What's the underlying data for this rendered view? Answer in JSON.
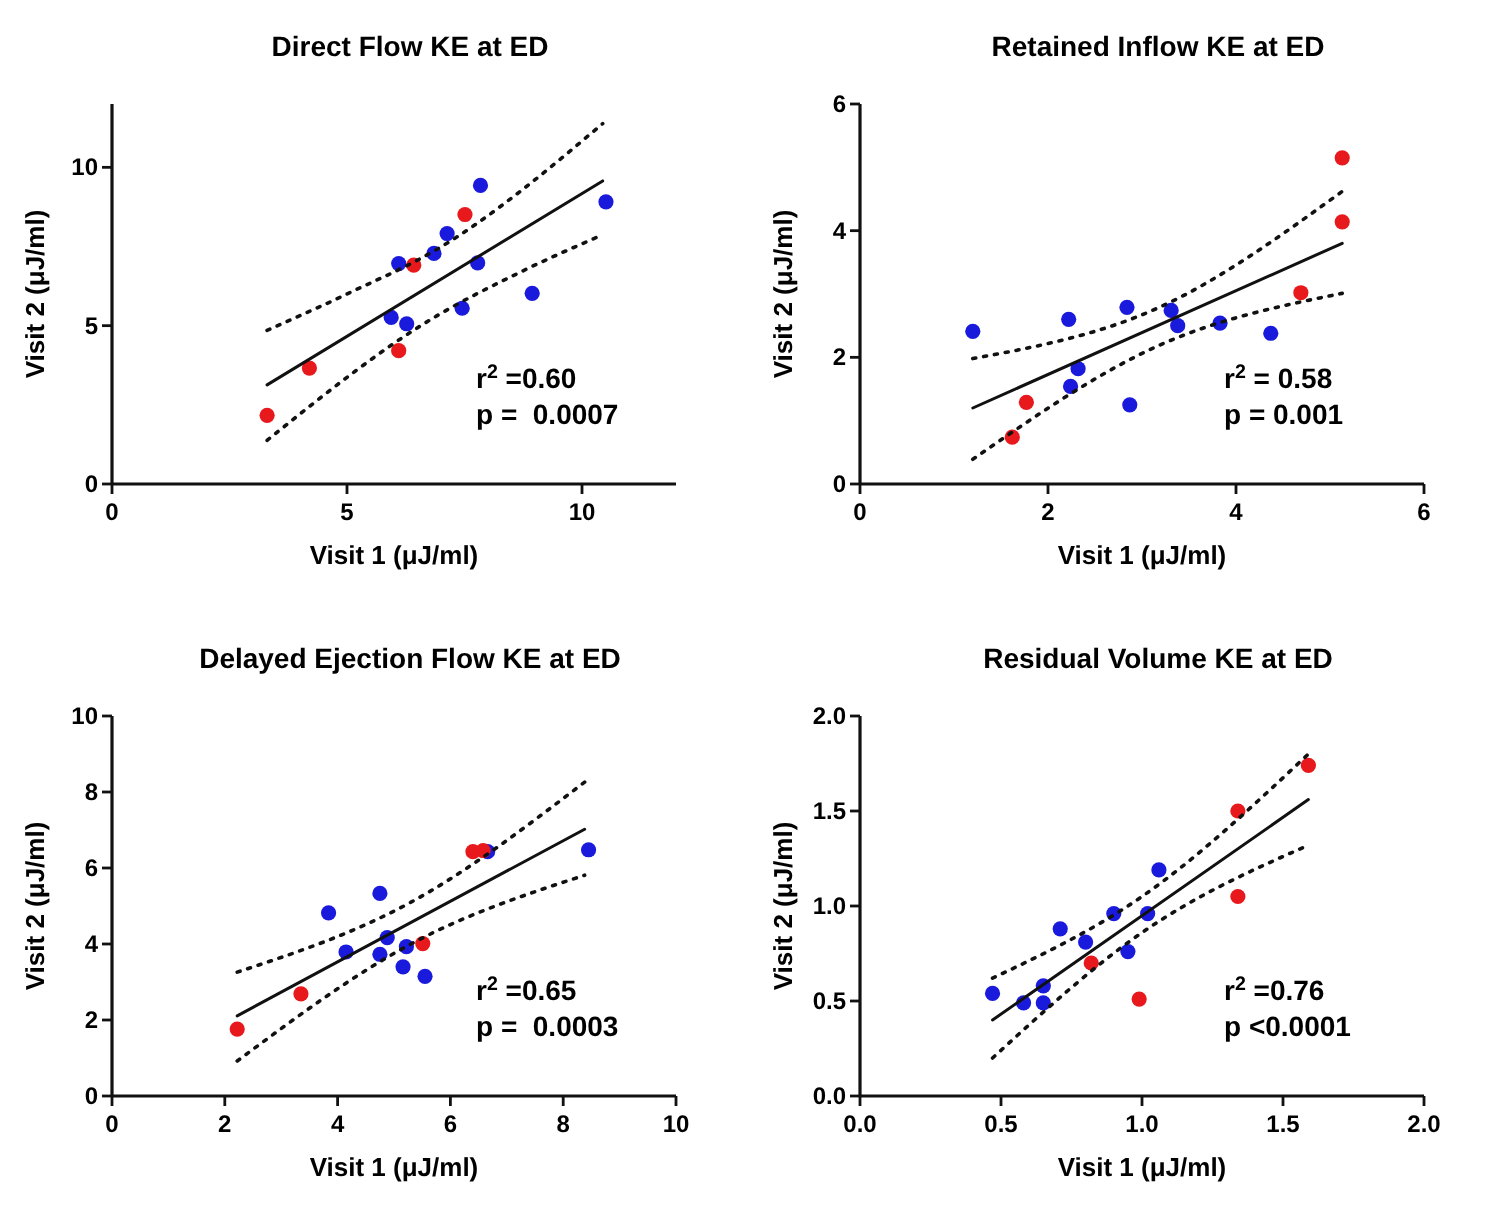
{
  "chart_data": [
    {
      "type": "scatter",
      "title": "Direct Flow KE at ED",
      "xlabel": "Visit 1 (μJ/ml)",
      "ylabel": "Visit 2 (μJ/ml)",
      "xlim": [
        0,
        12
      ],
      "xticks": [
        0,
        5,
        10
      ],
      "ylim": [
        0,
        12
      ],
      "yticks": [
        0,
        5,
        10
      ],
      "annotations": [
        "r$^{2}$ =0.60",
        "p =  0.0007"
      ],
      "series": [
        {
          "marker": "circle",
          "color": "#1a1adc",
          "x": [
            5.94,
            6.1,
            6.27,
            6.85,
            7.13,
            7.84,
            7.78,
            7.45,
            8.94,
            10.51
          ],
          "values": [
            5.26,
            6.96,
            5.06,
            7.28,
            7.91,
            9.43,
            6.98,
            5.55,
            6.02,
            8.91
          ]
        },
        {
          "marker": "circle",
          "color": "#e8191c",
          "x": [
            3.3,
            4.2,
            6.1,
            6.42,
            7.51
          ],
          "values": [
            2.17,
            3.66,
            4.21,
            6.91,
            8.51
          ]
        },
        {
          "type": "line",
          "line_style": "solid",
          "color": "#111111",
          "x": [
            3.3,
            10.44
          ],
          "values": [
            3.13,
            9.57
          ]
        },
        {
          "type": "line",
          "line_style": "dotted",
          "color": "#111111",
          "x": [
            3.3,
            5,
            6.9,
            10.44
          ],
          "values": [
            4.85,
            6.0,
            7.4,
            11.38
          ]
        },
        {
          "type": "line",
          "line_style": "dotted",
          "color": "#111111",
          "x": [
            3.3,
            6.9,
            8.7,
            10.44
          ],
          "values": [
            1.38,
            5.3,
            6.7,
            7.87
          ]
        }
      ]
    },
    {
      "type": "scatter",
      "title": "Retained Inflow KE at ED",
      "xlabel": "Visit 1 (μJ/ml)",
      "ylabel": "Visit 2 (μJ/ml)",
      "xlim": [
        0,
        6
      ],
      "xticks": [
        0,
        2,
        4,
        6
      ],
      "ylim": [
        0,
        6
      ],
      "yticks": [
        0,
        2,
        4,
        6
      ],
      "annotations": [
        "r$^{2}$ = 0.58",
        "p = 0.001"
      ],
      "series": [
        {
          "marker": "circle",
          "color": "#1a1adc",
          "x": [
            1.2,
            2.22,
            2.24,
            2.32,
            2.84,
            2.87,
            3.31,
            3.38,
            3.83,
            4.37
          ],
          "values": [
            2.41,
            2.6,
            1.54,
            1.82,
            2.79,
            1.25,
            2.74,
            2.5,
            2.54,
            2.38
          ]
        },
        {
          "marker": "circle",
          "color": "#e8191c",
          "x": [
            1.62,
            1.77,
            4.69,
            5.13,
            5.13
          ],
          "values": [
            0.74,
            1.29,
            3.02,
            4.14,
            5.15
          ]
        },
        {
          "type": "line",
          "line_style": "solid",
          "color": "#111111",
          "x": [
            1.2,
            5.13
          ],
          "values": [
            1.2,
            3.8
          ]
        },
        {
          "type": "line",
          "line_style": "dotted",
          "color": "#111111",
          "x": [
            1.2,
            3.2,
            5.13
          ],
          "values": [
            1.98,
            2.8,
            4.62
          ]
        },
        {
          "type": "line",
          "line_style": "dotted",
          "color": "#111111",
          "x": [
            1.2,
            3.2,
            5.13
          ],
          "values": [
            0.39,
            2.2,
            3.01
          ]
        }
      ]
    },
    {
      "type": "scatter",
      "title": "Delayed Ejection Flow KE at ED",
      "xlabel": "Visit 1 (μJ/ml)",
      "ylabel": "Visit 2 (μJ/ml)",
      "xlim": [
        0,
        10
      ],
      "xticks": [
        0,
        2,
        4,
        6,
        8,
        10
      ],
      "ylim": [
        0,
        10
      ],
      "yticks": [
        0,
        2,
        4,
        6,
        8,
        10
      ],
      "annotations": [
        "r$^{2}$ =0.65",
        "p =  0.0003"
      ],
      "series": [
        {
          "marker": "circle",
          "color": "#1a1adc",
          "x": [
            3.84,
            4.15,
            4.75,
            4.75,
            4.88,
            5.16,
            5.22,
            5.55,
            6.66,
            8.45
          ],
          "values": [
            4.82,
            3.79,
            5.33,
            3.73,
            4.17,
            3.4,
            3.93,
            3.15,
            6.43,
            6.48
          ]
        },
        {
          "marker": "circle",
          "color": "#e8191c",
          "x": [
            2.22,
            3.35,
            5.51,
            6.4,
            6.58
          ],
          "values": [
            1.76,
            2.69,
            4.01,
            6.43,
            6.46
          ]
        },
        {
          "type": "line",
          "line_style": "solid",
          "color": "#111111",
          "x": [
            2.22,
            8.38
          ],
          "values": [
            2.11,
            7.02
          ]
        },
        {
          "type": "line",
          "line_style": "dotted",
          "color": "#111111",
          "x": [
            2.22,
            5.3,
            8.38
          ],
          "values": [
            3.26,
            5.1,
            8.26
          ]
        },
        {
          "type": "line",
          "line_style": "dotted",
          "color": "#111111",
          "x": [
            2.22,
            5.3,
            8.38
          ],
          "values": [
            0.92,
            4.0,
            5.81
          ]
        }
      ]
    },
    {
      "type": "scatter",
      "title": "Residual Volume KE at ED",
      "xlabel": "Visit 1 (μJ/ml)",
      "ylabel": "Visit 2 (μJ/ml)",
      "xlim": [
        0,
        2
      ],
      "xticks": [
        {
          "value": 0,
          "label": "0.0"
        },
        0.5,
        {
          "value": 1,
          "label": "1.0"
        },
        1.5,
        {
          "value": 2,
          "label": "2.0"
        }
      ],
      "ylim": [
        0,
        2
      ],
      "yticks": [
        {
          "value": 0,
          "label": "0.0"
        },
        0.5,
        {
          "value": 1,
          "label": "1.0"
        },
        1.5,
        {
          "value": 2,
          "label": "2.0"
        }
      ],
      "annotations": [
        "r$^{2}$ =0.76",
        "p <0.0001"
      ],
      "series": [
        {
          "marker": "circle",
          "color": "#1a1adc",
          "x": [
            0.47,
            0.58,
            0.65,
            0.65,
            0.71,
            0.8,
            0.9,
            0.95,
            1.02,
            1.06
          ],
          "values": [
            0.54,
            0.49,
            0.58,
            0.49,
            0.88,
            0.81,
            0.96,
            0.76,
            0.96,
            1.19
          ]
        },
        {
          "marker": "circle",
          "color": "#e8191c",
          "x": [
            0.82,
            0.99,
            1.34,
            1.34,
            1.59
          ],
          "values": [
            0.7,
            0.51,
            1.05,
            1.5,
            1.74
          ]
        },
        {
          "type": "line",
          "line_style": "solid",
          "color": "#111111",
          "x": [
            0.47,
            1.59
          ],
          "values": [
            0.4,
            1.56
          ]
        },
        {
          "type": "line",
          "line_style": "dotted",
          "color": "#111111",
          "x": [
            0.47,
            1.0,
            1.59
          ],
          "values": [
            0.62,
            1.05,
            1.8
          ]
        },
        {
          "type": "line",
          "line_style": "dotted",
          "color": "#111111",
          "x": [
            0.47,
            1.0,
            1.59
          ],
          "values": [
            0.2,
            0.86,
            1.32
          ]
        }
      ]
    }
  ]
}
